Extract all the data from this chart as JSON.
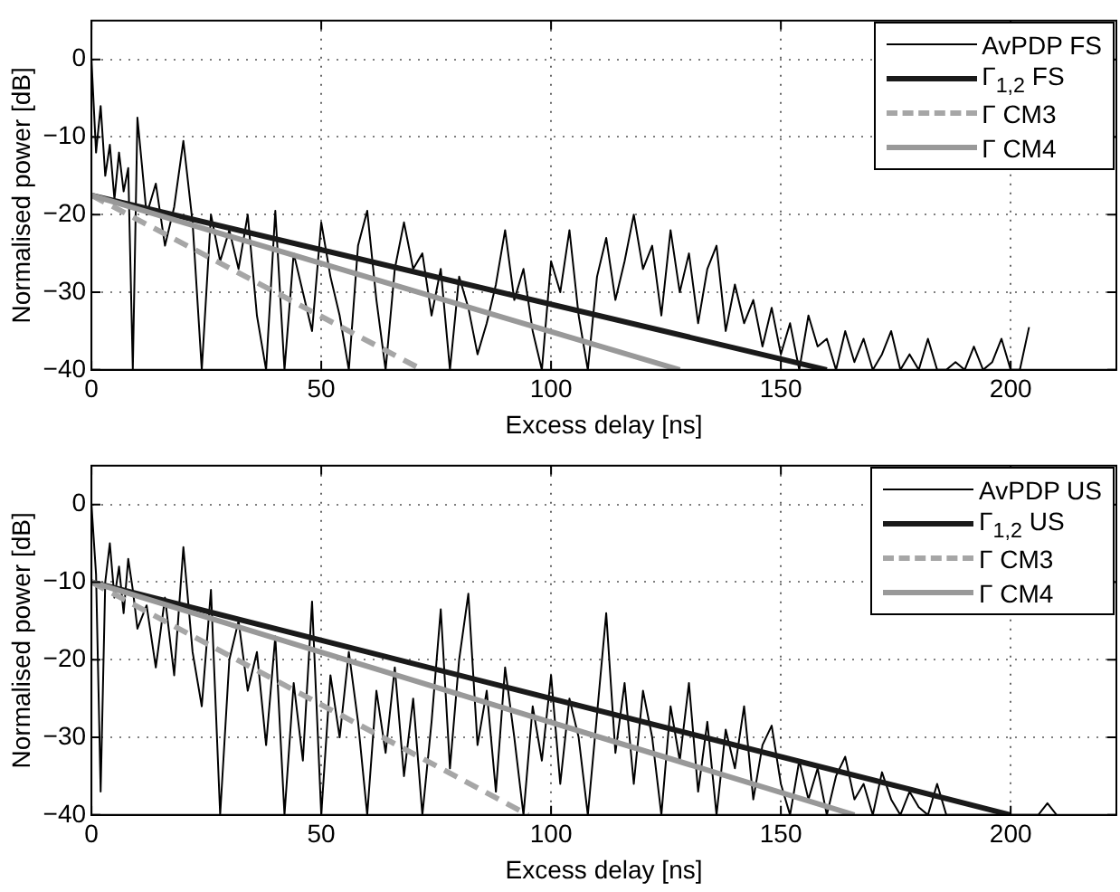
{
  "chart_data": [
    {
      "type": "line",
      "xlabel": "Excess delay [ns]",
      "ylabel": "Normalised power [dB]",
      "xlim": [
        0,
        223
      ],
      "ylim": [
        -40,
        5
      ],
      "xticks": [
        0,
        50,
        100,
        150,
        200
      ],
      "yticks": [
        -40,
        -30,
        -20,
        -10,
        0
      ],
      "grid": true,
      "legend": "top right",
      "marker": "none",
      "series": [
        {
          "name": "AvPDP FS",
          "color": "#000000",
          "line_style": "solid",
          "x": [
            0,
            1,
            2,
            3,
            4,
            5,
            6,
            7,
            8,
            9,
            10,
            12,
            14,
            16,
            18,
            20,
            22,
            24,
            26,
            28,
            30,
            32,
            34,
            36,
            38,
            40,
            42,
            44,
            46,
            48,
            50,
            52,
            54,
            56,
            58,
            60,
            62,
            64,
            66,
            68,
            70,
            72,
            74,
            76,
            78,
            80,
            82,
            84,
            86,
            88,
            90,
            92,
            94,
            96,
            98,
            100,
            102,
            104,
            106,
            108,
            110,
            112,
            114,
            116,
            118,
            120,
            122,
            124,
            126,
            128,
            130,
            132,
            134,
            136,
            138,
            140,
            142,
            144,
            146,
            148,
            150,
            152,
            154,
            156,
            158,
            160,
            162,
            164,
            166,
            168,
            170,
            172,
            174,
            176,
            178,
            180,
            182,
            184,
            186,
            188,
            190,
            192,
            194,
            196,
            198,
            200,
            202,
            204
          ],
          "values": [
            0,
            -12,
            -6,
            -15,
            -11,
            -18,
            -12,
            -17,
            -14,
            -40,
            -7.5,
            -20,
            -16,
            -24,
            -19,
            -10.5,
            -21,
            -40,
            -20,
            -26,
            -22,
            -27,
            -20,
            -33,
            -40,
            -19.5,
            -40,
            -25,
            -30,
            -35,
            -21,
            -28,
            -33,
            -40,
            -24,
            -19.5,
            -31,
            -40,
            -27,
            -21,
            -27,
            -25,
            -33,
            -27,
            -40,
            -28,
            -32,
            -38,
            -34,
            -29,
            -22,
            -31,
            -27,
            -35,
            -40,
            -26,
            -30,
            -22,
            -33,
            -40,
            -28,
            -23,
            -31,
            -26,
            -20,
            -27,
            -24,
            -33,
            -22,
            -30,
            -25,
            -34,
            -27,
            -24,
            -35,
            -29,
            -34,
            -31,
            -37,
            -32,
            -38,
            -34,
            -40,
            -33,
            -37,
            -36,
            -40,
            -35,
            -39,
            -36,
            -40,
            -38,
            -35,
            -40,
            -38,
            -40,
            -36,
            -40,
            -40,
            -39,
            -40,
            -37,
            -40,
            -39,
            -36,
            -40,
            -40,
            -34.5
          ]
        },
        {
          "name": "Γ$_{1,2}$ FS",
          "color": "#1a1a1a",
          "line_style": "solid",
          "x": [
            0,
            160
          ],
          "values": [
            -17.5,
            -40
          ]
        },
        {
          "name": "Γ CM3",
          "color": "#a6a6a6",
          "line_style": "dashed",
          "x": [
            0,
            72
          ],
          "values": [
            -17.5,
            -40
          ]
        },
        {
          "name": "Γ CM4",
          "color": "#999999",
          "line_style": "solid",
          "x": [
            0,
            128
          ],
          "values": [
            -17.5,
            -40
          ]
        }
      ]
    },
    {
      "type": "line",
      "xlabel": "Excess delay [ns]",
      "ylabel": "Normalised power [dB]",
      "xlim": [
        0,
        223
      ],
      "ylim": [
        -40,
        5
      ],
      "xticks": [
        0,
        50,
        100,
        150,
        200
      ],
      "yticks": [
        -40,
        -30,
        -20,
        -10,
        0
      ],
      "grid": true,
      "legend": "top right",
      "marker": "none",
      "series": [
        {
          "name": "AvPDP US",
          "color": "#000000",
          "line_style": "solid",
          "x": [
            0,
            1,
            2,
            3,
            4,
            5,
            6,
            7,
            8,
            9,
            10,
            12,
            14,
            16,
            18,
            20,
            22,
            24,
            26,
            28,
            30,
            32,
            34,
            36,
            38,
            40,
            42,
            44,
            46,
            48,
            50,
            52,
            54,
            56,
            58,
            60,
            62,
            64,
            66,
            68,
            70,
            72,
            74,
            76,
            78,
            80,
            82,
            84,
            86,
            88,
            90,
            92,
            94,
            96,
            98,
            100,
            102,
            104,
            106,
            108,
            110,
            112,
            114,
            116,
            118,
            120,
            122,
            124,
            126,
            128,
            130,
            132,
            134,
            136,
            138,
            140,
            142,
            144,
            146,
            148,
            150,
            152,
            154,
            156,
            158,
            160,
            162,
            164,
            166,
            168,
            170,
            172,
            174,
            176,
            178,
            180,
            182,
            184,
            186,
            188,
            190,
            192,
            194,
            196,
            198,
            200,
            202,
            204,
            206,
            208,
            210
          ],
          "values": [
            0,
            -9,
            -37,
            -10,
            -5,
            -12,
            -8,
            -14,
            -7,
            -11,
            -16,
            -13,
            -21,
            -12,
            -22,
            -5.5,
            -19,
            -26,
            -11,
            -40,
            -20,
            -15,
            -24,
            -19,
            -31,
            -17,
            -40,
            -23,
            -33,
            -12.5,
            -40,
            -22,
            -30,
            -19,
            -28,
            -40,
            -24,
            -32,
            -21,
            -35,
            -25,
            -40,
            -28,
            -13.5,
            -34,
            -20,
            -11.5,
            -31,
            -24,
            -37,
            -21,
            -30,
            -40,
            -26,
            -33,
            -22,
            -36,
            -25,
            -30,
            -40,
            -27,
            -14,
            -32,
            -23,
            -36,
            -24,
            -30,
            -40,
            -26,
            -33,
            -23,
            -37,
            -28,
            -40,
            -29,
            -34,
            -26,
            -38,
            -31,
            -28.5,
            -36,
            -40,
            -33,
            -38,
            -34,
            -40,
            -35,
            -32.5,
            -38,
            -36,
            -40,
            -34.5,
            -38,
            -40,
            -37,
            -39,
            -40,
            -36,
            -40,
            -40,
            -40,
            -40,
            -40,
            -40,
            -40,
            -40,
            -40,
            -40,
            -40,
            -38.5,
            -40
          ]
        },
        {
          "name": "Γ$_{1,2}$ US",
          "color": "#1a1a1a",
          "line_style": "solid",
          "x": [
            0,
            200
          ],
          "values": [
            -10,
            -40
          ]
        },
        {
          "name": "Γ CM3",
          "color": "#a6a6a6",
          "line_style": "dashed",
          "x": [
            0,
            95
          ],
          "values": [
            -10,
            -40
          ]
        },
        {
          "name": "Γ CM4",
          "color": "#999999",
          "line_style": "solid",
          "x": [
            0,
            166
          ],
          "values": [
            -10,
            -40
          ]
        }
      ]
    }
  ]
}
